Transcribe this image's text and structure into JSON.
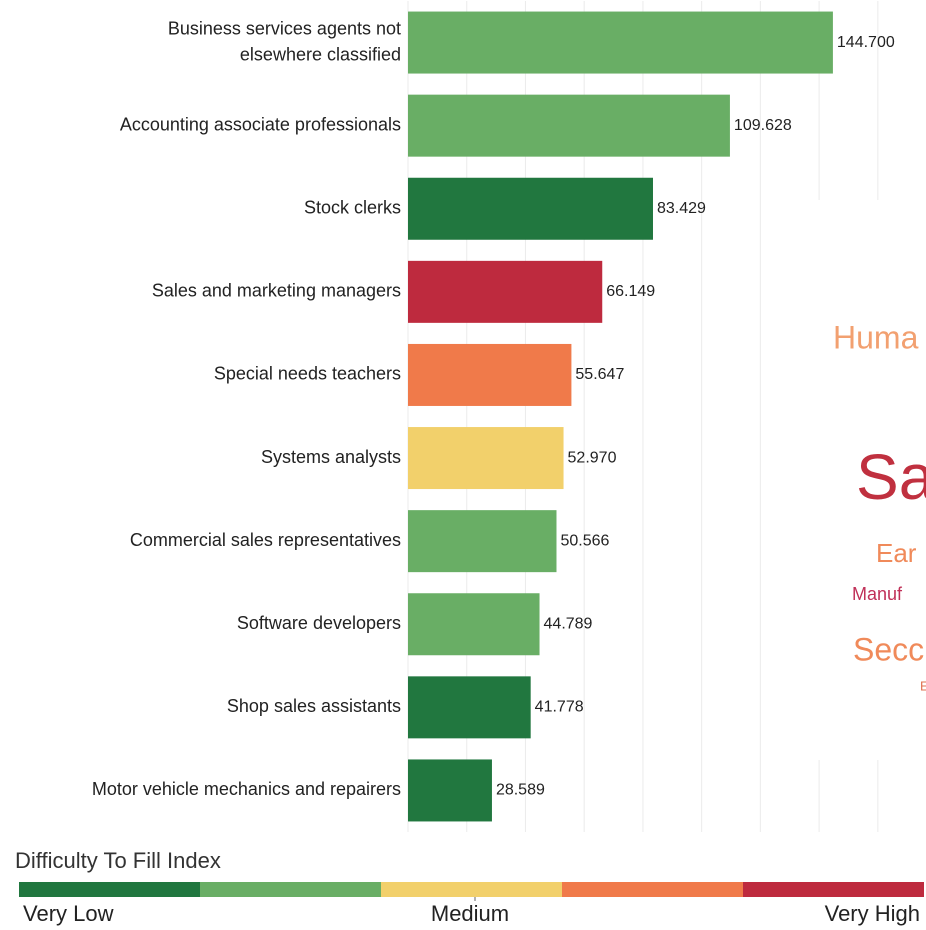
{
  "chart_data": {
    "type": "barh",
    "categories": [
      "Business services agents not elsewhere classified",
      "Accounting associate professionals",
      "Stock clerks",
      "Sales and marketing managers",
      "Special needs teachers",
      "Systems analysts",
      "Commercial sales representatives",
      "Software developers",
      "Shop sales assistants",
      "Motor vehicle mechanics and repairers"
    ],
    "values": [
      144.7,
      109.628,
      83.429,
      66.149,
      55.647,
      52.97,
      50.566,
      44.789,
      41.778,
      28.589
    ],
    "value_labels": [
      "144.700",
      "109.628",
      "83.429",
      "66.149",
      "55.647",
      "52.970",
      "50.566",
      "44.789",
      "41.778",
      "28.589"
    ],
    "colors": [
      "#69ae65",
      "#69ae65",
      "#21773f",
      "#be2a3e",
      "#f07a4a",
      "#f2d06b",
      "#69ae65",
      "#69ae65",
      "#21773f",
      "#21773f"
    ],
    "xlim": [
      0,
      176.4
    ],
    "xticks": [
      0,
      20,
      40,
      60,
      80,
      100,
      120,
      140,
      160
    ],
    "grid": true,
    "legend": {
      "title": "Difficulty To Fill Index",
      "colors": [
        "#21773f",
        "#69ae65",
        "#f2d06b",
        "#f07a4a",
        "#be2a3e"
      ],
      "labels": [
        "Very Low",
        "Medium",
        "Very High"
      ]
    },
    "background_text": [
      "Huma",
      "Sa",
      "Ear",
      "Manuf",
      "Secc",
      "E"
    ]
  }
}
